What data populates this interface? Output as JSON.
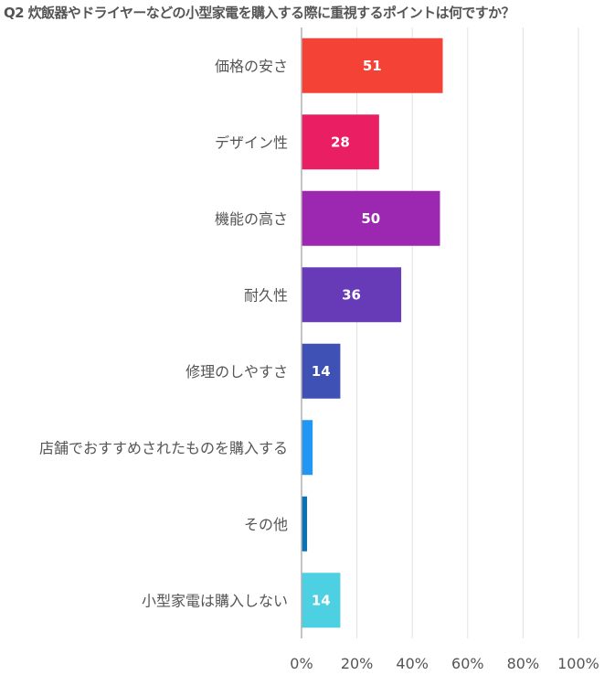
{
  "chart_data": {
    "type": "bar",
    "orientation": "horizontal",
    "title": "Q2 炊飯器やドライヤーなどの小型家電を購入する際に重視するポイントは何ですか？",
    "categories": [
      "価格の安さ",
      "デザイン性",
      "機能の高さ",
      "耐久性",
      "修理のしやすさ",
      "店舗でおすすめされたものを購入する",
      "その他",
      "小型家電は購入しない"
    ],
    "values": [
      51,
      28,
      50,
      36,
      14,
      4,
      2,
      14
    ],
    "data_labels": [
      "51",
      "28",
      "50",
      "36",
      "14",
      "",
      "",
      "14"
    ],
    "colors": [
      "#f44336",
      "#e91e63",
      "#9c27b0",
      "#673ab7",
      "#3f51b5",
      "#2196f3",
      "#0a73b4",
      "#4dd0e1"
    ],
    "xlim": [
      0,
      100
    ],
    "xticks": [
      "0%",
      "20%",
      "40%",
      "60%",
      "80%",
      "100%"
    ],
    "xtick_values": [
      0,
      20,
      40,
      60,
      80,
      100
    ],
    "xlabel": "",
    "ylabel": "",
    "grid": true,
    "legend": false
  }
}
